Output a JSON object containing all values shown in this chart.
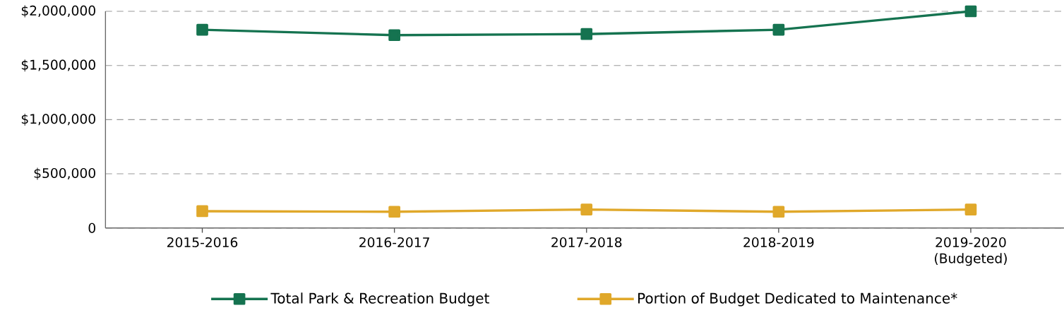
{
  "chart_data": {
    "type": "line",
    "categories": [
      "2015-2016",
      "2016-2017",
      "2017-2018",
      "2018-2019",
      "2019-2020 (Budgeted)"
    ],
    "series": [
      {
        "name": "Total Park & Recreation Budget",
        "color": "#157350",
        "values": [
          1830000,
          1780000,
          1790000,
          1830000,
          2000000
        ]
      },
      {
        "name": "Portion of Budget Dedicated  to Maintenance*",
        "color": "#e0a82a",
        "values": [
          155000,
          150000,
          170000,
          150000,
          170000
        ]
      }
    ],
    "ylim": [
      0,
      2000000
    ],
    "yticks": [
      0,
      {
        "value": 500000,
        "label": "$500,000"
      },
      {
        "value": 1000000,
        "label": "$1,000,000"
      },
      {
        "value": 1500000,
        "label": "$1,500,000"
      },
      {
        "value": 2000000,
        "label": "$2,000,000"
      }
    ],
    "grid": "y",
    "legend": "bottom",
    "marker": "square",
    "line_style": "solid"
  }
}
